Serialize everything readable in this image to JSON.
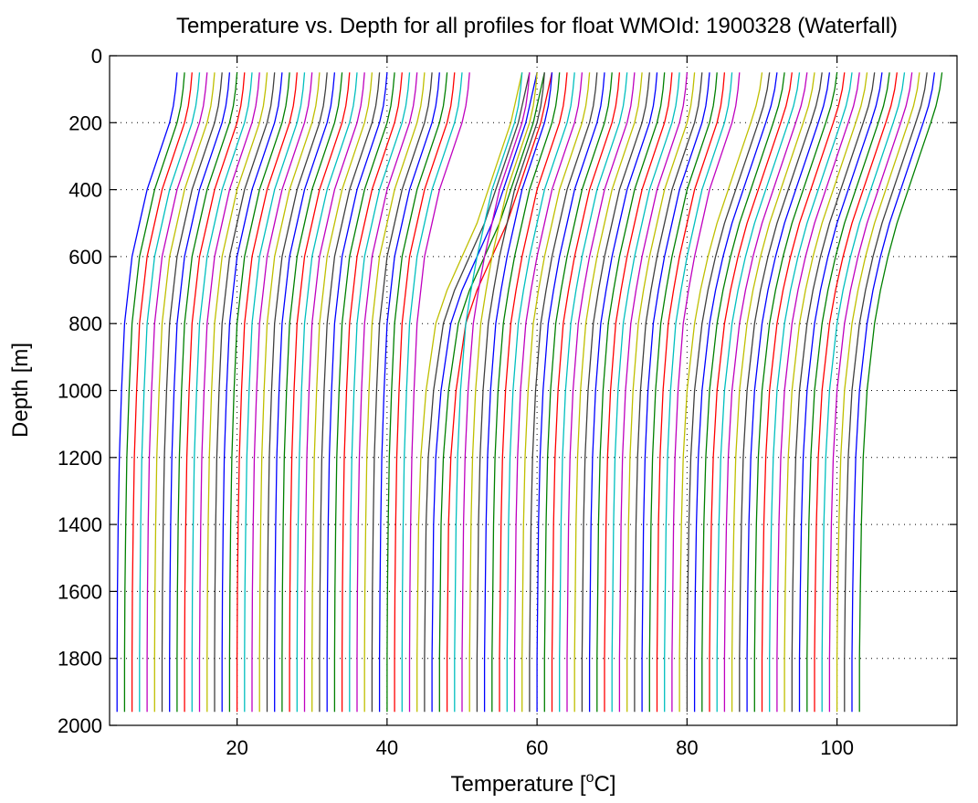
{
  "chart_data": {
    "type": "line",
    "title": "Temperature vs. Depth for all profiles for float WMOId: 1900328 (Waterfall)",
    "xlabel_main": "Temperature [",
    "xlabel_sup": "o",
    "xlabel_unit": "C]",
    "ylabel": "Depth [m]",
    "xlim": [
      3,
      116
    ],
    "ylim": [
      2000,
      0
    ],
    "y_reversed": true,
    "grid": "dotted",
    "xticks": [
      20,
      40,
      60,
      80,
      100
    ],
    "xtick_labels": [
      "20",
      "40",
      "60",
      "80",
      "100"
    ],
    "yticks": [
      0,
      200,
      400,
      600,
      800,
      1000,
      1200,
      1400,
      1600,
      1800,
      2000
    ],
    "ytick_labels": [
      "0",
      "200",
      "400",
      "600",
      "800",
      "1000",
      "1200",
      "1400",
      "1600",
      "1800",
      "2000"
    ],
    "color_cycle": [
      "#0000ff",
      "#008000",
      "#ff0000",
      "#00bfbf",
      "#bf00bf",
      "#bfbf00",
      "#404040"
    ],
    "profile_count": 100,
    "waterfall_offset_degC": 1,
    "depth_levels": [
      50,
      100,
      150,
      200,
      300,
      400,
      500,
      600,
      700,
      800,
      1000,
      1200,
      1400,
      1600,
      1800,
      1960
    ],
    "profile_shape_by_group": [
      {
        "profiles": "1-40",
        "temperature_offsets_from_deep_value": [
          8,
          7.8,
          7.5,
          7,
          5.5,
          4,
          3,
          2,
          1.5,
          1,
          0.6,
          0.3,
          0.15,
          0.05,
          0,
          0
        ]
      },
      {
        "profiles": "41-45",
        "temperature_offsets_from_deep_value": [
          14,
          13.5,
          13,
          12.5,
          11,
          9.5,
          8,
          6,
          4,
          2.5,
          1.2,
          0.5,
          0.2,
          0.1,
          0,
          0
        ]
      },
      {
        "profiles": "46-75",
        "temperature_offsets_from_deep_value": [
          9,
          8.8,
          8.5,
          8,
          6.5,
          5,
          4,
          3,
          2.2,
          1.5,
          0.8,
          0.4,
          0.2,
          0.1,
          0,
          0
        ]
      },
      {
        "profiles": "76-100",
        "temperature_offsets_from_deep_value": [
          11,
          10.7,
          10.2,
          9.5,
          8,
          6.5,
          5,
          3.8,
          2.8,
          2,
          1,
          0.5,
          0.25,
          0.1,
          0,
          0
        ]
      }
    ],
    "first_profile_deep_temperature": 4
  }
}
